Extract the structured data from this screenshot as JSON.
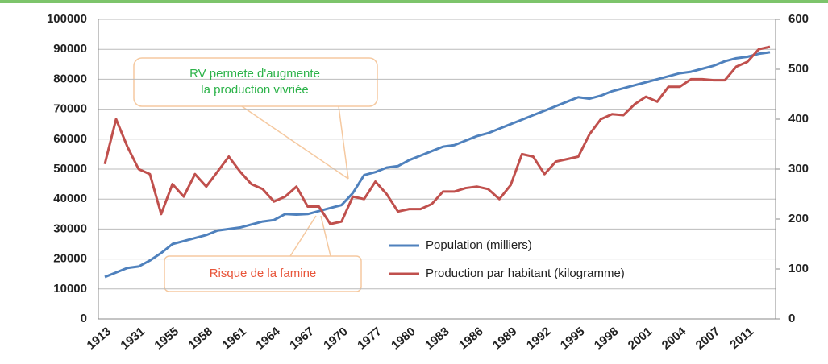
{
  "chart_data": {
    "type": "line",
    "categories": [
      "1913",
      null,
      null,
      "1931",
      null,
      null,
      "1955",
      null,
      null,
      "1958",
      null,
      null,
      "1961",
      null,
      null,
      "1964",
      null,
      null,
      "1967",
      null,
      null,
      "1970",
      null,
      null,
      "1977",
      null,
      null,
      "1980",
      null,
      null,
      "1983",
      null,
      null,
      "1986",
      null,
      null,
      "1989",
      null,
      null,
      "1992",
      null,
      null,
      "1995",
      null,
      null,
      "1998",
      null,
      null,
      "2001",
      null,
      null,
      "2004",
      null,
      null,
      "2007",
      null,
      null,
      "2011",
      null,
      null
    ],
    "series": [
      {
        "name": "Population (milliers)",
        "color": "#4f81bd",
        "axis": "y",
        "values": [
          14000,
          15500,
          17000,
          17500,
          19500,
          22000,
          25000,
          26000,
          27000,
          28000,
          29500,
          30000,
          30500,
          31500,
          32500,
          33000,
          35000,
          34800,
          35000,
          36000,
          37000,
          38000,
          42000,
          48000,
          49000,
          50500,
          51000,
          53000,
          54500,
          56000,
          57500,
          58000,
          59500,
          61000,
          62000,
          63500,
          65000,
          66500,
          68000,
          69500,
          71000,
          72500,
          74000,
          73500,
          74500,
          76000,
          77000,
          78000,
          79000,
          80000,
          81000,
          82000,
          82500,
          83500,
          84500,
          86000,
          87000,
          87500,
          88500,
          89000
        ]
      },
      {
        "name": "Production par habitant (kilogramme)",
        "color": "#c0504d",
        "axis": "y2",
        "values": [
          310,
          400,
          345,
          300,
          290,
          210,
          270,
          245,
          290,
          265,
          295,
          325,
          295,
          270,
          260,
          235,
          245,
          265,
          225,
          225,
          190,
          195,
          245,
          240,
          275,
          250,
          215,
          220,
          220,
          230,
          255,
          255,
          262,
          265,
          260,
          240,
          268,
          330,
          325,
          290,
          315,
          320,
          325,
          370,
          400,
          410,
          408,
          430,
          445,
          435,
          465,
          465,
          480,
          480,
          478,
          478,
          505,
          515,
          540,
          545
        ]
      }
    ],
    "ylim": [
      0,
      100000
    ],
    "yticks": [
      0,
      10000,
      20000,
      30000,
      40000,
      50000,
      60000,
      70000,
      80000,
      90000,
      100000
    ],
    "y2lim": [
      0,
      600
    ],
    "y2ticks": [
      0,
      100,
      200,
      300,
      400,
      500,
      600
    ],
    "grid": true,
    "annotations": [
      "RV permete d'augmente",
      "la production vivriée",
      "Risque de la famine"
    ]
  }
}
